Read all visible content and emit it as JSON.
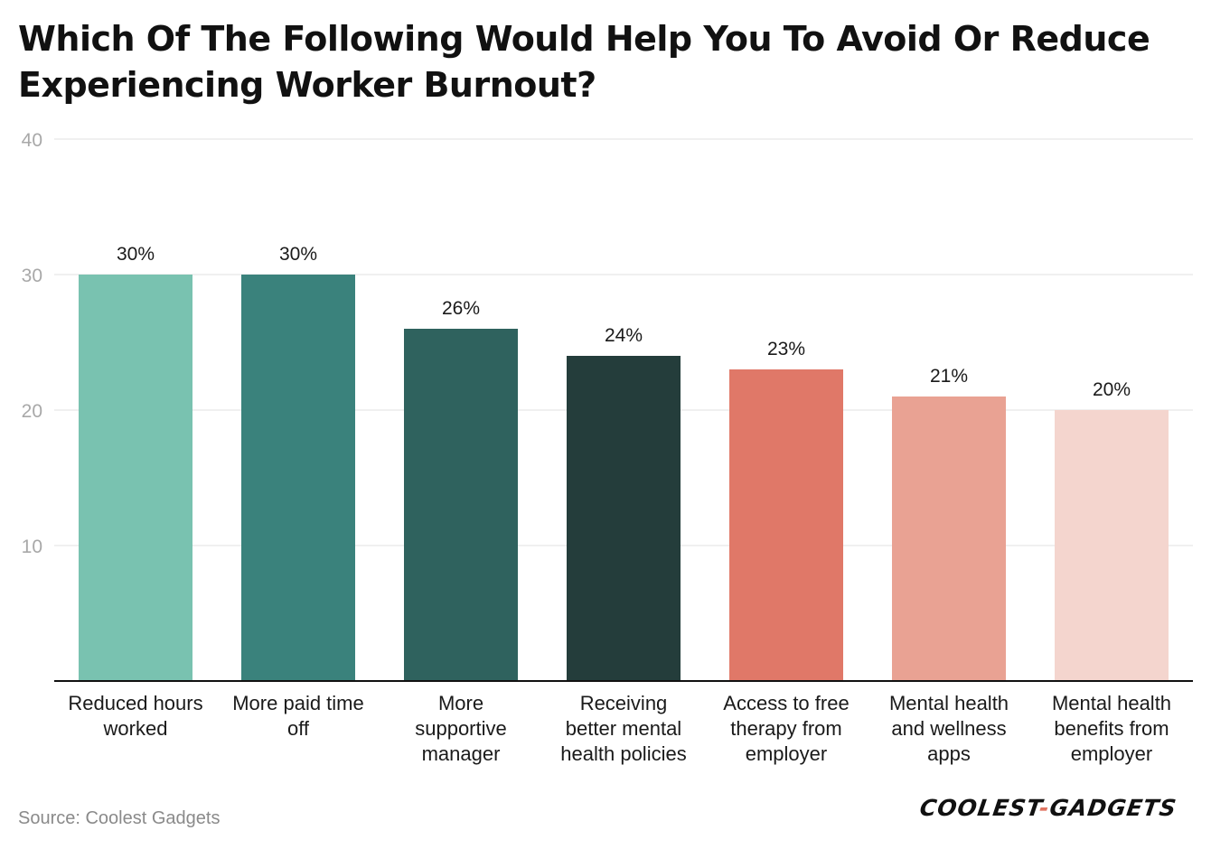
{
  "chart_data": {
    "type": "bar",
    "title": "Which Of The Following Would Help You To Avoid Or Reduce Experiencing Worker Burnout?",
    "categories": [
      [
        "Reduced hours",
        "worked"
      ],
      [
        "More paid time",
        "off"
      ],
      [
        "More",
        "supportive",
        "manager"
      ],
      [
        "Receiving",
        "better mental",
        "health policies"
      ],
      [
        "Access to free",
        "therapy from",
        "employer"
      ],
      [
        "Mental health",
        "and wellness",
        "apps"
      ],
      [
        "Mental health",
        "benefits from",
        "employer"
      ]
    ],
    "values": [
      30,
      30,
      26,
      24,
      23,
      21,
      20
    ],
    "value_labels": [
      "30%",
      "30%",
      "26%",
      "24%",
      "23%",
      "21%",
      "20%"
    ],
    "colors": [
      "#79c2b0",
      "#3a827c",
      "#2f625e",
      "#243d3b",
      "#e07868",
      "#e9a293",
      "#f4d5ce"
    ],
    "yticks": [
      10,
      20,
      30,
      40
    ],
    "ylim": [
      0,
      40
    ],
    "grid": true,
    "xlabel": "",
    "ylabel": ""
  },
  "footer": {
    "source": "Source: Coolest Gadgets",
    "brand_part1": "COOLEST",
    "brand_dash": "-",
    "brand_part2": "GADGETS"
  }
}
